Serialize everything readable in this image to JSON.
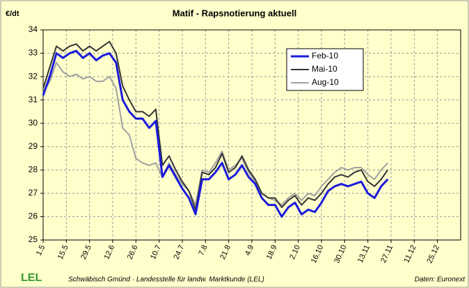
{
  "chart_data": {
    "type": "line",
    "title": "Matif - Rapsnotierung aktuell",
    "y_label": "€/dt",
    "x": [
      0,
      4,
      8,
      12,
      16,
      20,
      24,
      28,
      32,
      36,
      40,
      44,
      48,
      52,
      56,
      60,
      64,
      68,
      72,
      76,
      80,
      84,
      88,
      92,
      96,
      100,
      104,
      108,
      112,
      116,
      120,
      124,
      128,
      132,
      136,
      140,
      144,
      148,
      152,
      156,
      160,
      164,
      168,
      172,
      176,
      180,
      184,
      188,
      192,
      196,
      200,
      204,
      208
    ],
    "xlim": [
      0,
      252
    ],
    "xticks": [
      {
        "value": 0,
        "label": "1.5"
      },
      {
        "value": 14,
        "label": "15.5"
      },
      {
        "value": 28,
        "label": "29.5"
      },
      {
        "value": 42,
        "label": "12.6"
      },
      {
        "value": 56,
        "label": "26.6"
      },
      {
        "value": 70,
        "label": "10.7"
      },
      {
        "value": 84,
        "label": "24.7"
      },
      {
        "value": 98,
        "label": "7.8"
      },
      {
        "value": 112,
        "label": "21.8"
      },
      {
        "value": 126,
        "label": "4.9"
      },
      {
        "value": 140,
        "label": "18.9"
      },
      {
        "value": 154,
        "label": "2.10"
      },
      {
        "value": 168,
        "label": "16.10"
      },
      {
        "value": 182,
        "label": "30.10"
      },
      {
        "value": 196,
        "label": "13.11"
      },
      {
        "value": 210,
        "label": "27.11"
      },
      {
        "value": 224,
        "label": "11.12"
      },
      {
        "value": 238,
        "label": "25.12"
      }
    ],
    "ylim": [
      25,
      34
    ],
    "yticks": [
      25,
      26,
      27,
      28,
      29,
      30,
      31,
      32,
      33,
      34
    ],
    "grid": true,
    "legend": "upper-right",
    "series": [
      {
        "name": "Feb-10",
        "color": "#1a1adc",
        "width": 3,
        "values": [
          31.2,
          32.0,
          33.0,
          32.8,
          33.0,
          33.1,
          32.8,
          33.0,
          32.7,
          32.9,
          33.0,
          32.6,
          31.0,
          30.5,
          30.2,
          30.2,
          29.8,
          30.1,
          27.7,
          28.2,
          27.7,
          27.2,
          26.8,
          26.1,
          27.6,
          27.6,
          27.9,
          28.3,
          27.6,
          27.8,
          28.2,
          27.7,
          27.4,
          26.8,
          26.5,
          26.5,
          26.0,
          26.4,
          26.6,
          26.1,
          26.3,
          26.2,
          26.6,
          27.1,
          27.3,
          27.4,
          27.3,
          27.4,
          27.5,
          27.0,
          26.8,
          27.3,
          27.6
        ]
      },
      {
        "name": "Mai-10",
        "color": "#333333",
        "width": 2,
        "values": [
          31.5,
          32.4,
          33.3,
          33.1,
          33.3,
          33.4,
          33.1,
          33.3,
          33.1,
          33.3,
          33.5,
          33.0,
          31.6,
          31.0,
          30.5,
          30.5,
          30.3,
          30.6,
          28.2,
          28.6,
          28.0,
          27.5,
          27.1,
          26.3,
          27.9,
          27.8,
          28.1,
          28.7,
          27.9,
          28.1,
          28.6,
          28.0,
          27.6,
          27.0,
          26.8,
          26.8,
          26.4,
          26.7,
          26.9,
          26.5,
          26.8,
          26.7,
          27.0,
          27.4,
          27.7,
          27.8,
          27.7,
          27.9,
          28.0,
          27.5,
          27.3,
          27.6,
          28.0
        ]
      },
      {
        "name": "Aug-10",
        "color": "#a0a0a0",
        "width": 2,
        "values": [
          31.3,
          31.8,
          32.6,
          32.2,
          32.0,
          32.1,
          31.9,
          32.0,
          31.8,
          31.8,
          32.0,
          31.5,
          29.8,
          29.5,
          28.5,
          28.3,
          28.2,
          28.3,
          27.7,
          28.3,
          27.8,
          27.4,
          27.1,
          26.5,
          28.0,
          27.9,
          28.3,
          28.8,
          28.0,
          28.2,
          28.5,
          27.9,
          27.5,
          27.0,
          26.8,
          26.7,
          26.5,
          26.8,
          27.0,
          26.7,
          27.0,
          26.9,
          27.3,
          27.6,
          27.9,
          28.1,
          28.0,
          28.1,
          28.1,
          27.8,
          27.6,
          28.0,
          28.3
        ]
      }
    ],
    "logo": "LEL",
    "footer": "Schwäbisch Gmünd · Landesstelle für landw. Marktkunde (LEL)",
    "source": "Daten: Euronext"
  }
}
